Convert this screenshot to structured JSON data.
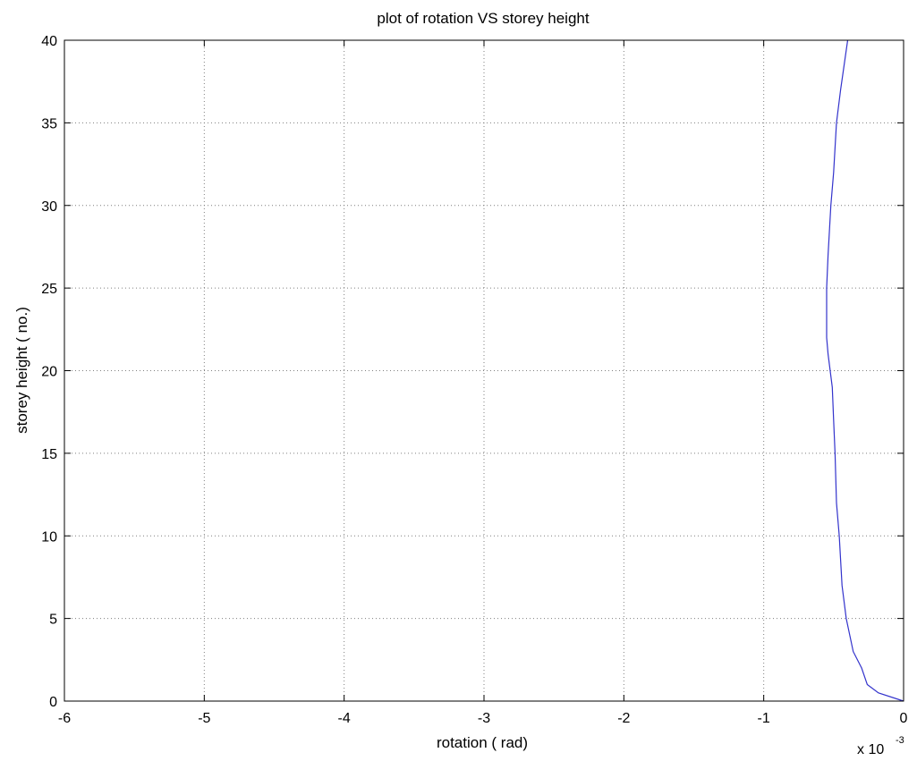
{
  "chart_data": {
    "type": "line",
    "title": "plot of rotation VS storey height",
    "xlabel": "rotation ( rad)",
    "ylabel": "storey height ( no.)",
    "x_multiplier": "x 10",
    "x_multiplier_exponent": "-3",
    "xlim": [
      -6,
      0
    ],
    "ylim": [
      0,
      40
    ],
    "xticks": [
      "-6",
      "-5",
      "-4",
      "-3",
      "-2",
      "-1",
      "0"
    ],
    "yticks": [
      "0",
      "5",
      "10",
      "15",
      "20",
      "25",
      "30",
      "35",
      "40"
    ],
    "grid": true,
    "line_color": "#3333cc",
    "series": [
      {
        "x": [
          0,
          -0.18,
          -0.26,
          -0.3,
          -0.36,
          -0.41,
          -0.44,
          -0.46,
          -0.48,
          -0.49,
          -0.5,
          -0.51,
          -0.54,
          -0.55,
          -0.55,
          -0.54,
          -0.52,
          -0.5,
          -0.48,
          -0.45,
          -0.4
        ],
        "y": [
          0,
          0.5,
          1,
          2,
          3,
          5,
          7,
          10,
          12,
          15,
          17,
          19,
          21,
          22,
          25,
          27,
          30,
          32,
          35,
          37,
          40
        ]
      }
    ]
  }
}
